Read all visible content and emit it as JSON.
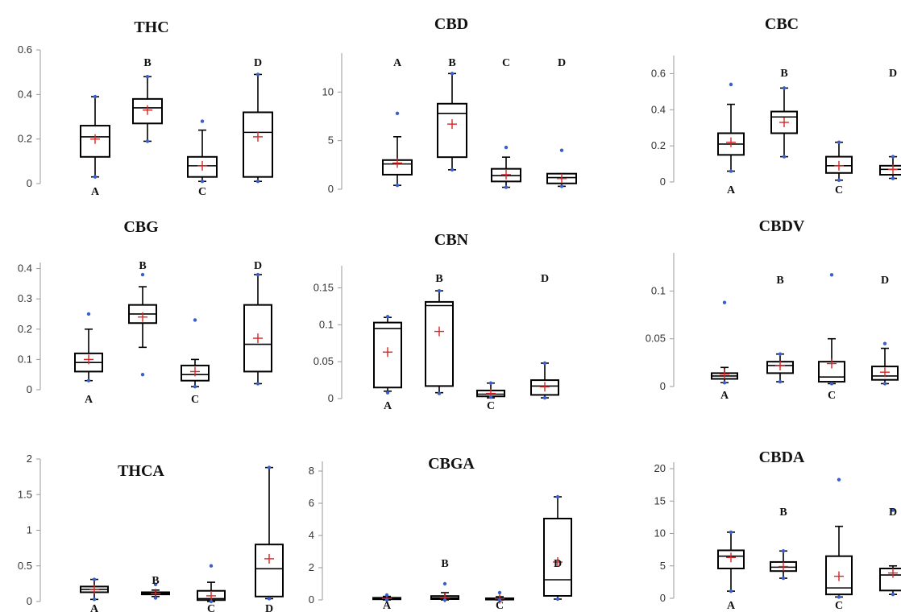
{
  "colors": {
    "box_stroke": "#000000",
    "mean_marker": "#d62728",
    "outlier": "#3a5fcd",
    "axis": "#9a9a9a"
  },
  "chart_data": [
    {
      "type": "boxplot",
      "title": "THC",
      "ylim": [
        0,
        0.6
      ],
      "yticks": [
        0,
        0.2,
        0.4,
        0.6
      ],
      "ytick_labels": [
        "0",
        "0.2",
        "0.4",
        "0.6"
      ],
      "groups": [
        {
          "label": "A",
          "label_pos": "below",
          "min": 0.03,
          "q1": 0.12,
          "median": 0.21,
          "q3": 0.26,
          "max": 0.39,
          "mean": 0.2,
          "outliers": [
            0.39,
            0.03
          ]
        },
        {
          "label": "B",
          "label_pos": "above",
          "min": 0.19,
          "q1": 0.27,
          "median": 0.34,
          "q3": 0.38,
          "max": 0.48,
          "mean": 0.33,
          "outliers": [
            0.48,
            0.19
          ]
        },
        {
          "label": "C",
          "label_pos": "below",
          "min": 0.01,
          "q1": 0.03,
          "median": 0.08,
          "q3": 0.12,
          "max": 0.24,
          "mean": 0.08,
          "outliers": [
            0.28,
            0.01
          ]
        },
        {
          "label": "D",
          "label_pos": "above",
          "min": 0.01,
          "q1": 0.03,
          "median": 0.23,
          "q3": 0.32,
          "max": 0.49,
          "mean": 0.21,
          "outliers": [
            0.49,
            0.01
          ]
        }
      ]
    },
    {
      "type": "boxplot",
      "title": "CBD",
      "ylim": [
        0,
        14
      ],
      "yticks": [
        0,
        5,
        10
      ],
      "ytick_labels": [
        "0",
        "5",
        "10"
      ],
      "groups": [
        {
          "label": "A",
          "label_pos": "above",
          "min": 0.4,
          "q1": 1.5,
          "median": 2.6,
          "q3": 3.0,
          "max": 5.4,
          "mean": 2.7,
          "outliers": [
            7.8,
            0.4
          ]
        },
        {
          "label": "B",
          "label_pos": "above",
          "min": 2.0,
          "q1": 3.3,
          "median": 7.8,
          "q3": 8.8,
          "max": 11.9,
          "mean": 6.7,
          "outliers": [
            11.9,
            2.0
          ]
        },
        {
          "label": "C",
          "label_pos": "above",
          "min": 0.2,
          "q1": 0.8,
          "median": 1.4,
          "q3": 2.1,
          "max": 3.3,
          "mean": 1.5,
          "outliers": [
            4.3,
            0.2
          ]
        },
        {
          "label": "D",
          "label_pos": "above",
          "min": 0.3,
          "q1": 0.6,
          "median": 1.2,
          "q3": 1.6,
          "max": 1.6,
          "mean": 1.1,
          "outliers": [
            4.0,
            0.3
          ]
        }
      ]
    },
    {
      "type": "boxplot",
      "title": "CBC",
      "ylim": [
        0,
        0.7
      ],
      "yticks": [
        0,
        0.2,
        0.4,
        0.6
      ],
      "ytick_labels": [
        "0",
        "0.2",
        "0.4",
        "0.6"
      ],
      "groups": [
        {
          "label": "A",
          "label_pos": "below",
          "min": 0.06,
          "q1": 0.15,
          "median": 0.21,
          "q3": 0.27,
          "max": 0.43,
          "mean": 0.22,
          "outliers": [
            0.54,
            0.06
          ]
        },
        {
          "label": "B",
          "label_pos": "above",
          "min": 0.14,
          "q1": 0.27,
          "median": 0.36,
          "q3": 0.39,
          "max": 0.52,
          "mean": 0.33,
          "outliers": [
            0.52,
            0.14
          ]
        },
        {
          "label": "C",
          "label_pos": "below",
          "min": 0.01,
          "q1": 0.05,
          "median": 0.09,
          "q3": 0.14,
          "max": 0.22,
          "mean": 0.09,
          "outliers": [
            0.22,
            0.01
          ]
        },
        {
          "label": "D",
          "label_pos": "above",
          "min": 0.02,
          "q1": 0.04,
          "median": 0.07,
          "q3": 0.09,
          "max": 0.14,
          "mean": 0.07,
          "outliers": [
            0.14,
            0.02
          ]
        }
      ]
    },
    {
      "type": "boxplot",
      "title": "CBG",
      "ylim": [
        0,
        0.42
      ],
      "yticks": [
        0,
        0.1,
        0.2,
        0.3,
        0.4
      ],
      "ytick_labels": [
        "0",
        "0.1",
        "0.2",
        "0.3",
        "0.4"
      ],
      "groups": [
        {
          "label": "A",
          "label_pos": "below",
          "min": 0.03,
          "q1": 0.06,
          "median": 0.09,
          "q3": 0.12,
          "max": 0.2,
          "mean": 0.1,
          "outliers": [
            0.25,
            0.03
          ]
        },
        {
          "label": "B",
          "label_pos": "above",
          "min": 0.14,
          "q1": 0.22,
          "median": 0.25,
          "q3": 0.28,
          "max": 0.34,
          "mean": 0.24,
          "outliers": [
            0.38,
            0.05
          ]
        },
        {
          "label": "C",
          "label_pos": "below",
          "min": 0.01,
          "q1": 0.03,
          "median": 0.05,
          "q3": 0.08,
          "max": 0.1,
          "mean": 0.06,
          "outliers": [
            0.23,
            0.01
          ]
        },
        {
          "label": "D",
          "label_pos": "above",
          "min": 0.02,
          "q1": 0.06,
          "median": 0.15,
          "q3": 0.28,
          "max": 0.38,
          "mean": 0.17,
          "outliers": [
            0.38,
            0.02
          ]
        }
      ]
    },
    {
      "type": "boxplot",
      "title": "CBN",
      "ylim": [
        0,
        0.18
      ],
      "yticks": [
        0,
        0.05,
        0.1,
        0.15
      ],
      "ytick_labels": [
        "0",
        "0.05",
        "0.1",
        "0.15"
      ],
      "groups": [
        {
          "label": "A",
          "label_pos": "below",
          "min": 0.01,
          "q1": 0.015,
          "median": 0.095,
          "q3": 0.103,
          "max": 0.11,
          "mean": 0.063,
          "outliers": [
            0.111,
            0.008
          ]
        },
        {
          "label": "B",
          "label_pos": "above",
          "min": 0.008,
          "q1": 0.017,
          "median": 0.126,
          "q3": 0.131,
          "max": 0.146,
          "mean": 0.091,
          "outliers": [
            0.146,
            0.007
          ]
        },
        {
          "label": "C",
          "label_pos": "below",
          "min": 0.001,
          "q1": 0.003,
          "median": 0.006,
          "q3": 0.011,
          "max": 0.021,
          "mean": 0.007,
          "outliers": [
            0.021,
            0.002
          ]
        },
        {
          "label": "D",
          "label_pos": "above",
          "min": 0.001,
          "q1": 0.005,
          "median": 0.017,
          "q3": 0.025,
          "max": 0.048,
          "mean": 0.016,
          "outliers": [
            0.048,
            0.001
          ]
        }
      ]
    },
    {
      "type": "boxplot",
      "title": "CBDV",
      "ylim": [
        0,
        0.14
      ],
      "yticks": [
        0,
        0.05,
        0.1
      ],
      "ytick_labels": [
        "0",
        "0.05",
        "0.1"
      ],
      "groups": [
        {
          "label": "A",
          "label_pos": "below",
          "min": 0.004,
          "q1": 0.008,
          "median": 0.011,
          "q3": 0.014,
          "max": 0.02,
          "mean": 0.013,
          "outliers": [
            0.088,
            0.004
          ]
        },
        {
          "label": "B",
          "label_pos": "above",
          "min": 0.005,
          "q1": 0.014,
          "median": 0.022,
          "q3": 0.026,
          "max": 0.034,
          "mean": 0.022,
          "outliers": [
            0.034,
            0.005
          ]
        },
        {
          "label": "C",
          "label_pos": "below",
          "min": 0.003,
          "q1": 0.005,
          "median": 0.01,
          "q3": 0.026,
          "max": 0.05,
          "mean": 0.024,
          "outliers": [
            0.117,
            0.003
          ]
        },
        {
          "label": "D",
          "label_pos": "above",
          "min": 0.003,
          "q1": 0.007,
          "median": 0.011,
          "q3": 0.021,
          "max": 0.04,
          "mean": 0.015,
          "outliers": [
            0.045,
            0.003
          ]
        }
      ]
    },
    {
      "type": "boxplot",
      "title": "THCA",
      "ylim": [
        0,
        2
      ],
      "yticks": [
        0,
        0.5,
        1,
        1.5,
        2
      ],
      "ytick_labels": [
        "0",
        "0.5",
        "1",
        "1.5",
        "2"
      ],
      "groups": [
        {
          "label": "A",
          "label_pos": "below",
          "min": 0.03,
          "q1": 0.13,
          "median": 0.17,
          "q3": 0.21,
          "max": 0.31,
          "mean": 0.17,
          "outliers": [
            0.31,
            0.03
          ]
        },
        {
          "label": "B",
          "label_pos": "above",
          "min": 0.07,
          "q1": 0.1,
          "median": 0.11,
          "q3": 0.13,
          "max": 0.16,
          "mean": 0.11,
          "outliers": [
            0.24,
            0.05
          ]
        },
        {
          "label": "C",
          "label_pos": "below",
          "min": 0.0,
          "q1": 0.02,
          "median": 0.04,
          "q3": 0.15,
          "max": 0.27,
          "mean": 0.08,
          "outliers": [
            0.5,
            0.0
          ]
        },
        {
          "label": "D",
          "label_pos": "below",
          "min": 0.04,
          "q1": 0.07,
          "median": 0.46,
          "q3": 0.8,
          "max": 1.88,
          "mean": 0.6,
          "outliers": [
            1.88,
            0.04
          ]
        }
      ]
    },
    {
      "type": "boxplot",
      "title": "CBGA",
      "ylim": [
        0,
        8.6
      ],
      "yticks": [
        0,
        2,
        4,
        6,
        8
      ],
      "ytick_labels": [
        "0",
        "2",
        "4",
        "6",
        "8"
      ],
      "groups": [
        {
          "label": "A",
          "label_pos": "below",
          "min": 0.0,
          "q1": 0.04,
          "median": 0.08,
          "q3": 0.13,
          "max": 0.22,
          "mean": 0.09,
          "outliers": [
            0.3,
            0.0
          ]
        },
        {
          "label": "B",
          "label_pos": "above",
          "min": 0.0,
          "q1": 0.05,
          "median": 0.12,
          "q3": 0.24,
          "max": 0.45,
          "mean": 0.15,
          "outliers": [
            1.0,
            0.0
          ]
        },
        {
          "label": "C",
          "label_pos": "below",
          "min": 0.0,
          "q1": 0.02,
          "median": 0.05,
          "q3": 0.1,
          "max": 0.2,
          "mean": 0.07,
          "outliers": [
            0.45,
            0.0
          ]
        },
        {
          "label": "D",
          "label_pos": "above",
          "min": 0.05,
          "q1": 0.25,
          "median": 1.25,
          "q3": 5.05,
          "max": 6.4,
          "mean": 2.35,
          "outliers": [
            6.4,
            0.05
          ]
        }
      ]
    },
    {
      "type": "boxplot",
      "title": "CBDA",
      "ylim": [
        0,
        21
      ],
      "yticks": [
        0,
        5,
        10,
        15,
        20
      ],
      "ytick_labels": [
        "0",
        "5",
        "10",
        "15",
        "20"
      ],
      "groups": [
        {
          "label": "A",
          "label_pos": "below",
          "min": 1.1,
          "q1": 4.6,
          "median": 6.5,
          "q3": 7.4,
          "max": 10.2,
          "mean": 6.3,
          "outliers": [
            10.2,
            1.1
          ]
        },
        {
          "label": "B",
          "label_pos": "above",
          "min": 3.1,
          "q1": 4.2,
          "median": 4.8,
          "q3": 5.6,
          "max": 7.3,
          "mean": 4.9,
          "outliers": [
            7.3,
            3.1
          ]
        },
        {
          "label": "C",
          "label_pos": "below",
          "min": 0.2,
          "q1": 0.6,
          "median": 1.6,
          "q3": 6.5,
          "max": 11.1,
          "mean": 3.4,
          "outliers": [
            18.3,
            0.2
          ]
        },
        {
          "label": "D",
          "label_pos": "above",
          "min": 0.6,
          "q1": 1.2,
          "median": 3.6,
          "q3": 4.6,
          "max": 5.0,
          "mean": 3.9,
          "outliers": [
            13.6,
            0.6
          ]
        }
      ]
    }
  ]
}
